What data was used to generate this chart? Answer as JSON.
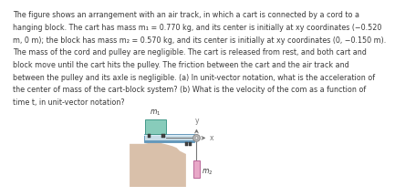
{
  "bg_color": "#ffffff",
  "text_color": "#3a3a3a",
  "paragraph_lines": [
    "The figure shows an arrangement with an air track, in which a cart is connected by a cord to a",
    "hanging block. The cart has mass m₁ = 0.770 kg, and its center is initially at xy coordinates (−0.520",
    "m, 0 m); the block has mass m₂ = 0.570 kg, and its center is initially at xy coordinates (0, −0.150 m).",
    "The mass of the cord and pulley are negligible. The cart is released from rest, and both cart and",
    "block move until the cart hits the pulley. The friction between the cart and the air track and",
    "between the pulley and its axle is negligible. (a) In unit-vector notation, what is the acceleration of",
    "the center of mass of the cart-block system? (b) What is the velocity of the com as a function of",
    "time t, in unit-vector notation?"
  ],
  "track_color": "#aaccdd",
  "track_color2": "#c8dde8",
  "track_highlight": "#ddeef8",
  "track_border": "#6699bb",
  "cart_color": "#88ccbb",
  "cart_border": "#44998a",
  "table_color": "#d9c0aa",
  "table_color2": "#e8d4c0",
  "block_color": "#e8a8c8",
  "block_border": "#bb6699",
  "pulley_color": "#888888",
  "pulley_fill": "#bbbbbb",
  "cord_color": "#777777",
  "axis_color": "#777777",
  "wheel_color": "#444444",
  "font_size_text": 5.8,
  "font_size_label": 5.5
}
